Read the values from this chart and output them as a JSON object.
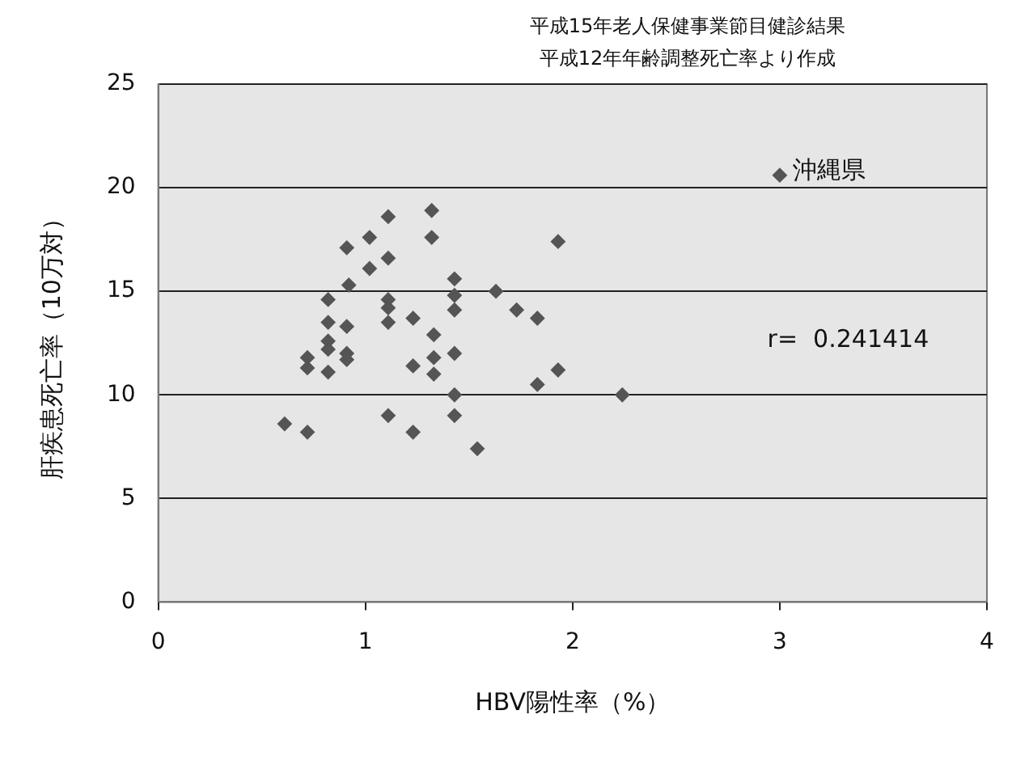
{
  "chart_data": {
    "type": "scatter",
    "title": "平成15年老人保健事業節目健診結果",
    "subtitle": "平成12年年齢調整死亡率より作成",
    "xlabel": "HBV陽性率（%）",
    "ylabel": "肝疾患死亡率（10万対）",
    "annotations": [
      "r=  0.241414",
      {
        "text": "沖縄県",
        "x": 3.0,
        "y": 20.6
      }
    ],
    "x": [
      1.11,
      1.32,
      1.02,
      0.91,
      1.32,
      1.11,
      1.02,
      0.92,
      0.82,
      1.11,
      1.11,
      1.11,
      1.23,
      0.82,
      0.91,
      0.82,
      0.82,
      0.91,
      0.91,
      0.72,
      0.72,
      0.82,
      1.23,
      1.33,
      1.33,
      1.33,
      0.61,
      0.72,
      1.11,
      1.23,
      1.93,
      1.43,
      1.43,
      1.43,
      1.63,
      1.73,
      1.83,
      1.43,
      1.93,
      1.83,
      1.43,
      2.24,
      1.43,
      1.54,
      3.0
    ],
    "values": [
      18.6,
      18.9,
      17.6,
      17.1,
      17.6,
      16.6,
      16.1,
      15.3,
      14.6,
      14.6,
      14.2,
      13.5,
      13.7,
      13.5,
      13.3,
      12.6,
      12.2,
      12.0,
      11.7,
      11.8,
      11.3,
      11.1,
      11.4,
      12.9,
      11.8,
      11.0,
      8.6,
      8.2,
      9.0,
      8.2,
      17.4,
      15.6,
      14.8,
      14.1,
      15.0,
      14.1,
      13.7,
      12.0,
      11.2,
      10.5,
      10.0,
      10.0,
      9.0,
      7.4,
      20.6
    ],
    "color": "#555555",
    "marker": "diamond",
    "xlim": [
      0,
      4
    ],
    "xticks": [
      0,
      1,
      2,
      3,
      4
    ],
    "ylim": [
      0,
      25
    ],
    "yticks": [
      0,
      5,
      10,
      15,
      20,
      25
    ],
    "grid": "y",
    "legend": false
  }
}
